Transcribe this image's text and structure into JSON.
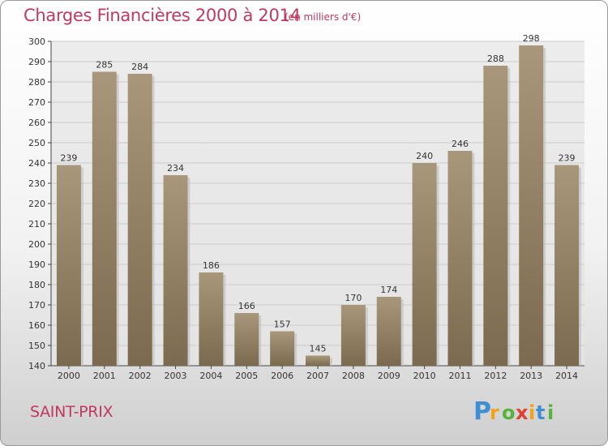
{
  "header": {
    "title": "Charges Financières 2000 à 2014",
    "subtitle": "(en milliers d'€)"
  },
  "footer": {
    "commune": "SAINT-PRIX",
    "logo_text": "Proxiti"
  },
  "colors": {
    "title": "#c0395f",
    "bar_top": "#a8977a",
    "bar_bottom": "#7b6a4f",
    "grid": "#c8c8c8"
  },
  "chart_data": {
    "type": "bar",
    "title": "Charges Financières 2000 à 2014",
    "subtitle": "(en milliers d'€)",
    "categories": [
      "2000",
      "2001",
      "2002",
      "2003",
      "2004",
      "2005",
      "2006",
      "2007",
      "2008",
      "2009",
      "2010",
      "2011",
      "2012",
      "2013",
      "2014"
    ],
    "values": [
      239,
      285,
      284,
      234,
      186,
      166,
      157,
      145,
      170,
      174,
      240,
      246,
      288,
      298,
      239
    ],
    "ylim": [
      140,
      300
    ],
    "yticks": [
      140,
      150,
      160,
      170,
      180,
      190,
      200,
      210,
      220,
      230,
      240,
      250,
      260,
      270,
      280,
      290,
      300
    ],
    "grid": true,
    "xlabel": "",
    "ylabel": ""
  }
}
